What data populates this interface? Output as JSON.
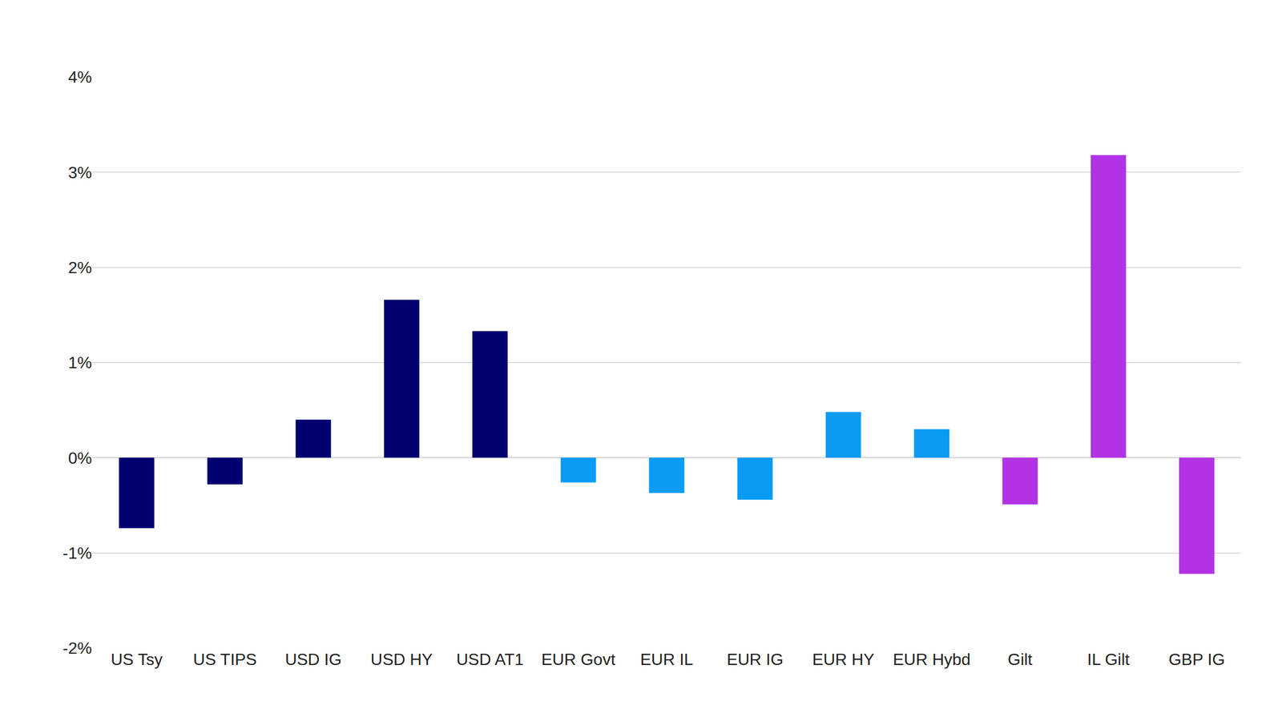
{
  "chart_data": {
    "type": "bar",
    "categories": [
      "US Tsy",
      "US TIPS",
      "USD IG",
      "USD HY",
      "USD AT1",
      "EUR Govt",
      "EUR IL",
      "EUR IG",
      "EUR HY",
      "EUR Hybd",
      "Gilt",
      "IL Gilt",
      "GBP IG"
    ],
    "values": [
      -0.74,
      -0.28,
      0.4,
      1.66,
      1.33,
      -0.26,
      -0.37,
      -0.44,
      0.48,
      0.3,
      -0.49,
      3.18,
      -1.22
    ],
    "colors": [
      "#000070",
      "#000070",
      "#000070",
      "#000070",
      "#000070",
      "#0a9bf5",
      "#0a9bf5",
      "#0a9bf5",
      "#0a9bf5",
      "#0a9bf5",
      "#b233e6",
      "#b233e6",
      "#b233e6"
    ],
    "ylim": [
      -2,
      4
    ],
    "yticks": [
      {
        "value": -2,
        "label": "-2%"
      },
      {
        "value": -1,
        "label": "-1%"
      },
      {
        "value": 0,
        "label": "0%"
      },
      {
        "value": 1,
        "label": "1%"
      },
      {
        "value": 2,
        "label": "2%"
      },
      {
        "value": 3,
        "label": "3%"
      },
      {
        "value": 4,
        "label": "4%"
      }
    ],
    "grid": true
  }
}
